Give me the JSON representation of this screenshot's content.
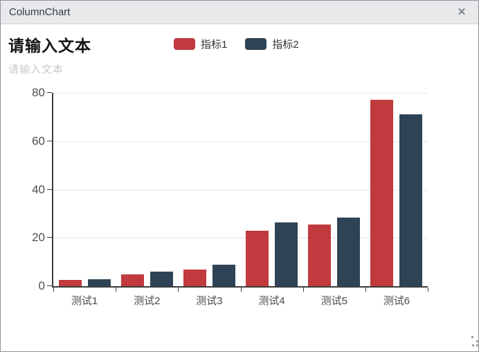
{
  "window": {
    "title": "ColumnChart",
    "close_icon": "✕"
  },
  "header": {
    "title": "请输入文本",
    "subtitle": "请输入文本"
  },
  "colors": {
    "series1": "#c13a3d",
    "series2": "#2e4456",
    "titlebar_bg": "#e8e9eb",
    "axis": "#3d3d3d",
    "gridline": "#e5e5e5"
  },
  "chart_data": {
    "type": "bar",
    "title": "请输入文本",
    "subtitle": "请输入文本",
    "categories": [
      "测试1",
      "测试2",
      "测试3",
      "测试4",
      "测试5",
      "测试6"
    ],
    "series": [
      {
        "name": "指标1",
        "color": "#c13a3d",
        "values": [
          2.5,
          5,
          7,
          23,
          25.5,
          77
        ]
      },
      {
        "name": "指标2",
        "color": "#2e4456",
        "values": [
          3,
          6,
          9,
          26.5,
          28.5,
          71
        ]
      }
    ],
    "xlabel": "",
    "ylabel": "",
    "ylim": [
      0,
      80
    ],
    "yticks": [
      0,
      20,
      40,
      60,
      80
    ],
    "grid": true,
    "legend_position": "top"
  }
}
